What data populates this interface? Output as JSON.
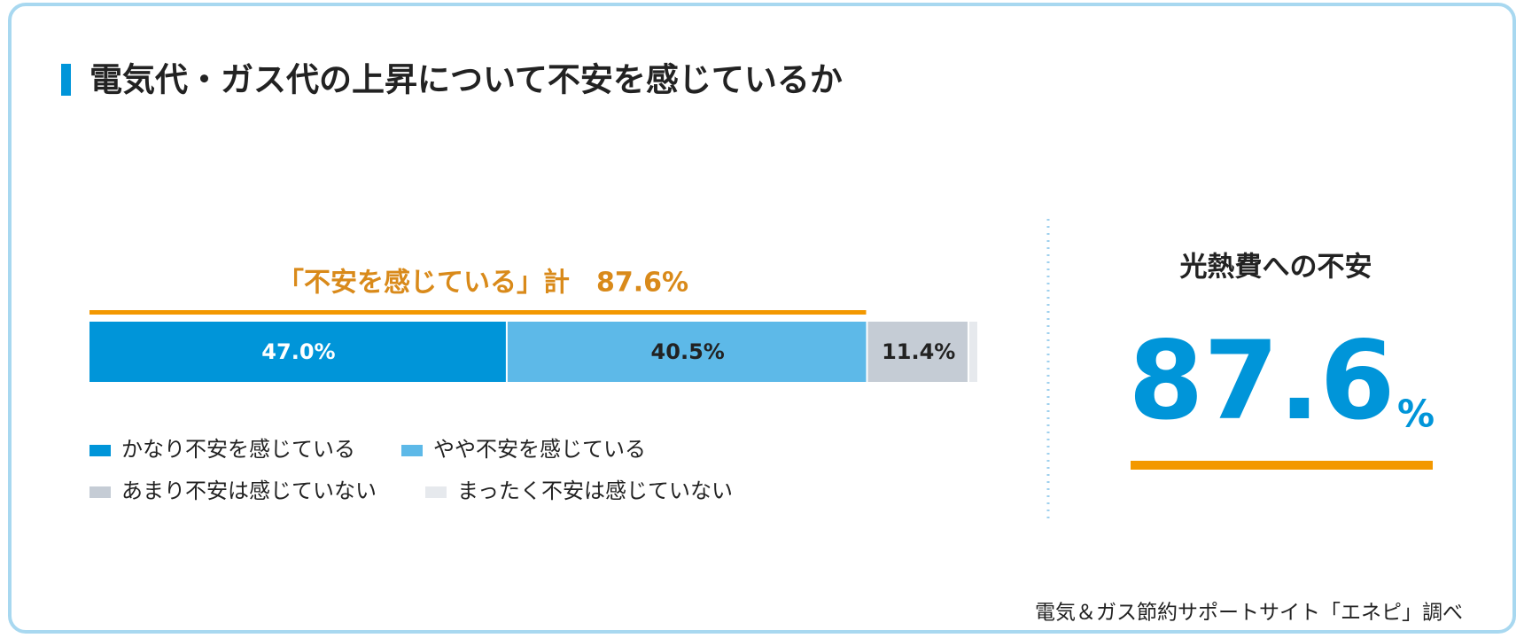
{
  "chart_data": {
    "type": "bar",
    "orientation": "horizontal",
    "stacked": true,
    "title": "電気代・ガス代の上昇について不安を感じているか",
    "annotation": "「不安を感じている」計　87.6%",
    "xlim": [
      0,
      100
    ],
    "series": [
      {
        "name": "かなり不安を感じている",
        "color": "#0095d9",
        "values": [
          47.0
        ],
        "value_labels": [
          "47.0%"
        ]
      },
      {
        "name": "やや不安を感じている",
        "color": "#5db9e8",
        "values": [
          40.5
        ],
        "value_labels": [
          "40.5%"
        ]
      },
      {
        "name": "あまり不安は感じていない",
        "color": "#c5ccd5",
        "values": [
          11.4
        ],
        "value_labels": [
          "11.4%"
        ]
      },
      {
        "name": "まったく不安は感じていない",
        "color": "#e6e9ed",
        "values": [
          1.1
        ]
      }
    ]
  },
  "panel": {
    "title": "光熱費への不安",
    "value": 87.6,
    "unit": "%"
  },
  "source": "電気＆ガス節約サポートサイト「エネピ」調べ"
}
